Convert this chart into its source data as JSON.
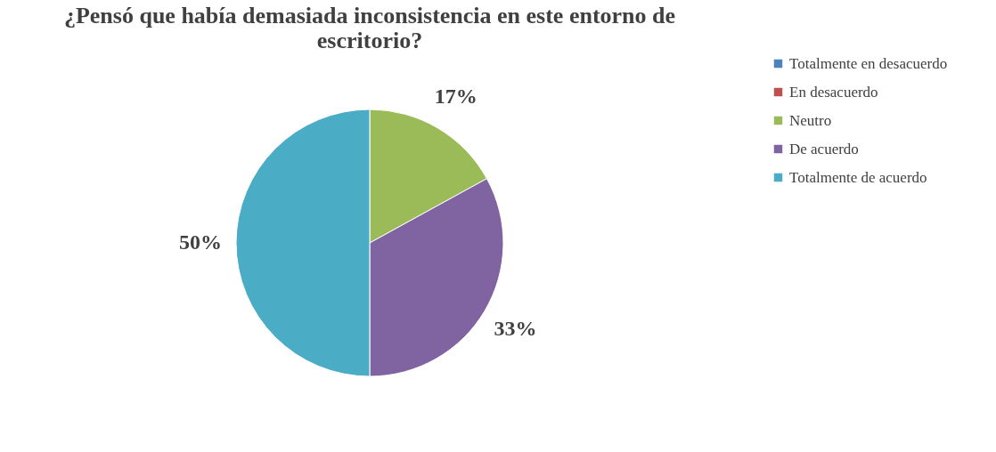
{
  "chart_data": {
    "type": "pie",
    "title": "¿Pensó que había demasiada inconsistencia en este entorno de escritorio?",
    "categories": [
      "Totalmente en desacuerdo",
      "En desacuerdo",
      "Neutro",
      "De acuerdo",
      "Totalmente de acuerdo"
    ],
    "values": [
      0,
      0,
      17,
      33,
      50
    ],
    "colors": [
      "#4f81bd",
      "#c0504d",
      "#9bbb59",
      "#8064a2",
      "#4bacc6"
    ],
    "value_labels": [
      null,
      null,
      "17%",
      "33%",
      "50%"
    ],
    "legend": "right"
  }
}
